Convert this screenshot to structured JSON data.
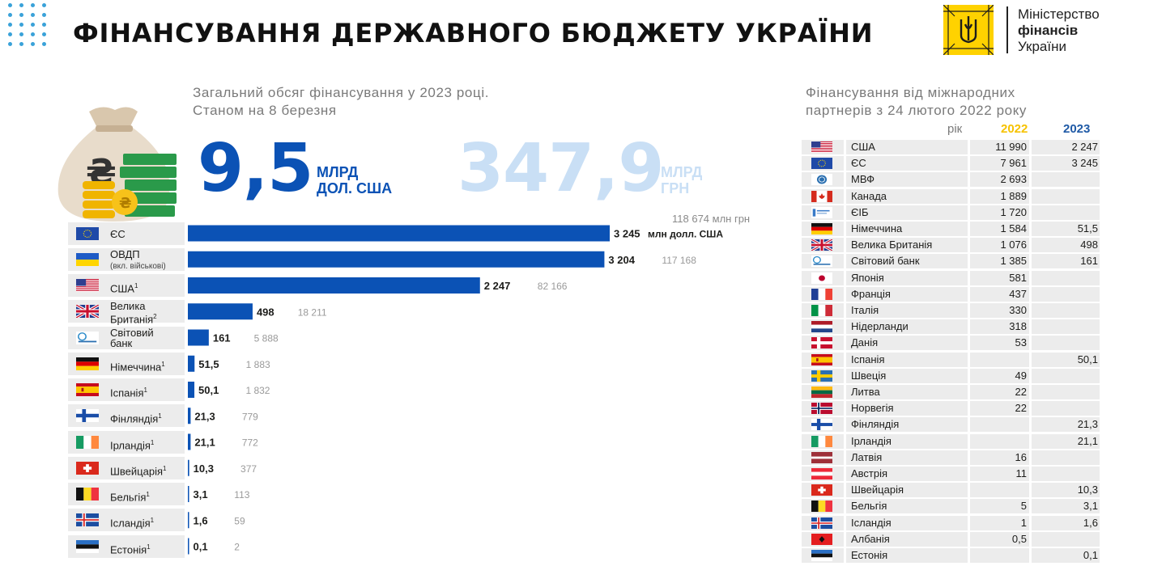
{
  "header": {
    "title": "ФІНАНСУВАННЯ ДЕРЖАВНОГО БЮДЖЕТУ УКРАЇНИ",
    "logo_line1": "Міністерство",
    "logo_line2": "фінансів",
    "logo_line3": "України"
  },
  "summary": {
    "subtitle_line1": "Загальний обсяг фінансування  у 2023 році.",
    "subtitle_line2": "Станом на 8 березня",
    "total_usd": "9,5",
    "total_usd_unit_1": "МЛРД",
    "total_usd_unit_2": "ДОЛ. США",
    "total_uah": "347,9",
    "total_uah_unit_1": "МЛРД",
    "total_uah_unit_2": "ГРН",
    "first_uah_note": "118 674 млн грн"
  },
  "chart_data": {
    "type": "bar",
    "orientation": "horizontal",
    "value_unit": "млн долл. США",
    "categories": [
      "ЄС",
      "ОВДП",
      "США",
      "Велика Британія",
      "Світовий банк",
      "Німеччина",
      "Іспанія",
      "Фінляндія",
      "Ірландія",
      "Швейцарія",
      "Бельгія",
      "Ісландія",
      "Естонія"
    ],
    "rows": [
      {
        "flag": "eu",
        "name": "ЄС",
        "value": 3245,
        "value_label": "3 245",
        "unit_label": "млн долл. США",
        "uah": ""
      },
      {
        "flag": "ua",
        "name": "ОВДП",
        "sub": "(вкл. військові)",
        "value": 3204,
        "value_label": "3 204",
        "uah": "117 168"
      },
      {
        "flag": "us",
        "name": "США",
        "sup": "1",
        "value": 2247,
        "value_label": "2 247",
        "uah": "82 166"
      },
      {
        "flag": "gb",
        "name": "Велика",
        "name2": "Британія",
        "sup": "2",
        "value": 498,
        "value_label": "498",
        "uah": "18 211"
      },
      {
        "flag": "wb",
        "name": "Світовий",
        "name2": "банк",
        "value": 161,
        "value_label": "161",
        "uah": "5 888"
      },
      {
        "flag": "de",
        "name": "Німеччина",
        "sup": "1",
        "value": 51.5,
        "value_label": "51,5",
        "uah": "1 883"
      },
      {
        "flag": "es",
        "name": "Іспанія",
        "sup": "1",
        "value": 50.1,
        "value_label": "50,1",
        "uah": "1 832"
      },
      {
        "flag": "fi",
        "name": "Фінляндія",
        "sup": "1",
        "value": 21.3,
        "value_label": "21,3",
        "uah": "779"
      },
      {
        "flag": "ie",
        "name": "Ірландія",
        "sup": "1",
        "value": 21.1,
        "value_label": "21,1",
        "uah": "772"
      },
      {
        "flag": "ch",
        "name": "Швейцарія",
        "sup": "1",
        "value": 10.3,
        "value_label": "10,3",
        "uah": "377"
      },
      {
        "flag": "be",
        "name": "Бельгія",
        "sup": "1",
        "value": 3.1,
        "value_label": "3,1",
        "uah": "113"
      },
      {
        "flag": "is",
        "name": "Ісландія",
        "sup": "1",
        "value": 1.6,
        "value_label": "1,6",
        "uah": "59"
      },
      {
        "flag": "ee",
        "name": "Естонія",
        "sup": "1",
        "value": 0.1,
        "value_label": "0,1",
        "uah": "2"
      }
    ],
    "xlim": [
      0,
      3245
    ],
    "bar_color": "#0b52b5",
    "grid": false
  },
  "table": {
    "title_line1": "Фінансування  від міжнародних",
    "title_line2": "партнерів  з 24 лютого 2022 року",
    "header_label": "рік",
    "year1": "2022",
    "year2": "2023",
    "year1_color": "#f6c200",
    "year2_color": "#1f5aa6",
    "rows": [
      {
        "flag": "us",
        "name": "США",
        "v2022": "11 990",
        "v2023": "2 247"
      },
      {
        "flag": "eu",
        "name": "ЄС",
        "v2022": "7 961",
        "v2023": "3 245"
      },
      {
        "flag": "imf",
        "name": "МВФ",
        "v2022": "2 693",
        "v2023": ""
      },
      {
        "flag": "ca",
        "name": "Канада",
        "v2022": "1 889",
        "v2023": ""
      },
      {
        "flag": "eib",
        "name": "ЄІБ",
        "v2022": "1 720",
        "v2023": ""
      },
      {
        "flag": "de",
        "name": "Німеччина",
        "v2022": "1 584",
        "v2023": "51,5"
      },
      {
        "flag": "gb",
        "name": "Велика Британія",
        "v2022": "1 076",
        "v2023": "498"
      },
      {
        "flag": "wb",
        "name": "Світовий банк",
        "v2022": "1 385",
        "v2023": "161"
      },
      {
        "flag": "jp",
        "name": "Японія",
        "v2022": "581",
        "v2023": ""
      },
      {
        "flag": "fr",
        "name": "Франція",
        "v2022": "437",
        "v2023": ""
      },
      {
        "flag": "it",
        "name": "Італія",
        "v2022": "330",
        "v2023": ""
      },
      {
        "flag": "nl",
        "name": "Нідерланди",
        "v2022": "318",
        "v2023": ""
      },
      {
        "flag": "dk",
        "name": "Данія",
        "v2022": "53",
        "v2023": ""
      },
      {
        "flag": "es",
        "name": "Іспанія",
        "v2022": "",
        "v2023": "50,1"
      },
      {
        "flag": "se",
        "name": "Швеція",
        "v2022": "49",
        "v2023": ""
      },
      {
        "flag": "lt",
        "name": "Литва",
        "v2022": "22",
        "v2023": ""
      },
      {
        "flag": "no",
        "name": "Норвегія",
        "v2022": "22",
        "v2023": ""
      },
      {
        "flag": "fi",
        "name": "Фінляндія",
        "v2022": "",
        "v2023": "21,3"
      },
      {
        "flag": "ie",
        "name": "Ірландія",
        "v2022": "",
        "v2023": "21,1"
      },
      {
        "flag": "lv",
        "name": "Латвія",
        "v2022": "16",
        "v2023": ""
      },
      {
        "flag": "at",
        "name": "Австрія",
        "v2022": "11",
        "v2023": ""
      },
      {
        "flag": "ch",
        "name": "Швейцарія",
        "v2022": "",
        "v2023": "10,3"
      },
      {
        "flag": "be",
        "name": "Бельгія",
        "v2022": "5",
        "v2023": "3,1"
      },
      {
        "flag": "is",
        "name": "Ісландія",
        "v2022": "1",
        "v2023": "1,6"
      },
      {
        "flag": "al",
        "name": "Албанія",
        "v2022": "0,5",
        "v2023": ""
      },
      {
        "flag": "ee",
        "name": "Естонія",
        "v2022": "",
        "v2023": "0,1"
      }
    ]
  }
}
